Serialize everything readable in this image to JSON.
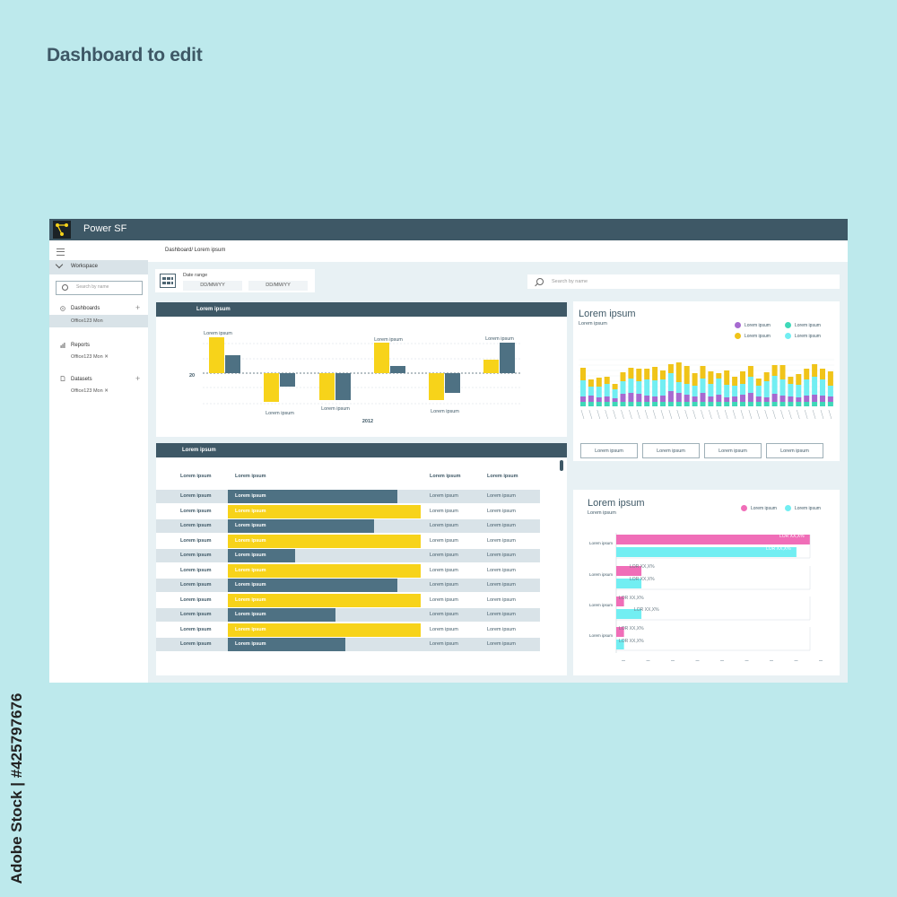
{
  "page": {
    "title": "Dashboard to edit",
    "watermark": "Adobe Stock | #425797676"
  },
  "app": {
    "name": "Power SF"
  },
  "sidebar": {
    "workspace": "Workspace",
    "search_placeholder": "Search by name",
    "sections": [
      {
        "label": "Dashboards",
        "item": "Office123 Mon",
        "icon": "dashboard-icon"
      },
      {
        "label": "Reports",
        "item": "Office123 Mon ✕",
        "icon": "report-icon"
      },
      {
        "label": "Datasets",
        "item": "Office123 Mon ✕",
        "icon": "dataset-icon"
      }
    ]
  },
  "breadcrumb": "Dashboard/ Lorem ipsum",
  "date_range": {
    "label": "Date range",
    "from": "DD/MM/YY",
    "to": "DD/MM/YY"
  },
  "search": {
    "placeholder": "Search by name"
  },
  "bar_panel": {
    "header": "Lorem ipsum",
    "axis_value": "20",
    "xlabel": "2012",
    "bar_label": "Lorem ipsum"
  },
  "table_panel": {
    "header": "Lorem ipsum",
    "columns": [
      "Lorem ipsum",
      "Lorem ipsum",
      "Lorem ipsum",
      "Lorem ipsum"
    ],
    "rows": [
      {
        "c1": "Lorem ipsum",
        "bar": "Lorem ipsum",
        "c3": "Lorem ipsum",
        "c4": "Lorem ipsum",
        "pct": 0.88,
        "color": "#4e7183"
      },
      {
        "c1": "Lorem ipsum",
        "bar": "Lorem ipsum",
        "c3": "Lorem ipsum",
        "c4": "Lorem ipsum",
        "pct": 1.0,
        "color": "#f7d31a"
      },
      {
        "c1": "Lorem ipsum",
        "bar": "Lorem ipsum",
        "c3": "Lorem ipsum",
        "c4": "Lorem ipsum",
        "pct": 0.76,
        "color": "#4e7183"
      },
      {
        "c1": "Lorem ipsum",
        "bar": "Lorem ipsum",
        "c3": "Lorem ipsum",
        "c4": "Lorem ipsum",
        "pct": 1.0,
        "color": "#f7d31a"
      },
      {
        "c1": "Lorem ipsum",
        "bar": "Lorem ipsum",
        "c3": "Lorem ipsum",
        "c4": "Lorem ipsum",
        "pct": 0.35,
        "color": "#4e7183"
      },
      {
        "c1": "Lorem ipsum",
        "bar": "Lorem ipsum",
        "c3": "Lorem ipsum",
        "c4": "Lorem ipsum",
        "pct": 1.0,
        "color": "#f7d31a"
      },
      {
        "c1": "Lorem ipsum",
        "bar": "Lorem ipsum",
        "c3": "Lorem ipsum",
        "c4": "Lorem ipsum",
        "pct": 0.88,
        "color": "#4e7183"
      },
      {
        "c1": "Lorem ipsum",
        "bar": "Lorem ipsum",
        "c3": "Lorem ipsum",
        "c4": "Lorem ipsum",
        "pct": 1.0,
        "color": "#f7d31a"
      },
      {
        "c1": "Lorem ipsum",
        "bar": "Lorem ipsum",
        "c3": "Lorem ipsum",
        "c4": "Lorem ipsum",
        "pct": 0.56,
        "color": "#4e7183"
      },
      {
        "c1": "Lorem ipsum",
        "bar": "Lorem ipsum",
        "c3": "Lorem ipsum",
        "c4": "Lorem ipsum",
        "pct": 1.0,
        "color": "#f7d31a"
      },
      {
        "c1": "Lorem ipsum",
        "bar": "Lorem ipsum",
        "c3": "Lorem ipsum",
        "c4": "Lorem ipsum",
        "pct": 0.61,
        "color": "#4e7183"
      }
    ]
  },
  "stack_panel": {
    "title": "Lorem ipsum",
    "subtitle": "Lorem ipsum",
    "legend": [
      {
        "name": "Lorem ipsum",
        "color": "#a66ad0"
      },
      {
        "name": "Lorem ipsum",
        "color": "#3fd8b8"
      },
      {
        "name": "Lorem ipsum",
        "color": "#f0c419"
      },
      {
        "name": "Lorem ipsum",
        "color": "#72eef2"
      }
    ],
    "buttons": [
      "Lorem ipsum",
      "Lorem ipsum",
      "Lorem ipsum",
      "Lorem ipsum"
    ]
  },
  "hbar_panel": {
    "title": "Lorem ipsum",
    "subtitle": "Lorem ipsum",
    "legend": [
      {
        "name": "Lorem ipsum",
        "color": "#f06eb8"
      },
      {
        "name": "Lorem ipsum",
        "color": "#72eef2"
      }
    ],
    "category_label": "Lorem ipsum",
    "value_label": "LOR XX,X%"
  },
  "chart_data": [
    {
      "type": "bar",
      "baseline": 20,
      "xlabel": "2012",
      "colors": [
        "#f7d31a",
        "#4e7183"
      ],
      "groups": [
        {
          "a": 40,
          "b": 20
        },
        {
          "a": -32,
          "b": -15
        },
        {
          "a": -30,
          "b": -30
        },
        {
          "a": 34,
          "b": 8
        },
        {
          "a": -30,
          "b": -22
        },
        {
          "a": 15,
          "b": 34
        }
      ]
    },
    {
      "type": "bar",
      "stacked": true,
      "colors": [
        "#3fd8b8",
        "#a66ad0",
        "#72eef2",
        "#f0c419"
      ],
      "bars": [
        [
          5,
          6,
          18,
          14
        ],
        [
          5,
          7,
          10,
          8
        ],
        [
          5,
          5,
          12,
          10
        ],
        [
          5,
          6,
          14,
          8
        ],
        [
          5,
          4,
          10,
          6
        ],
        [
          5,
          9,
          14,
          10
        ],
        [
          5,
          10,
          16,
          12
        ],
        [
          5,
          9,
          14,
          14
        ],
        [
          5,
          7,
          18,
          12
        ],
        [
          5,
          6,
          18,
          15
        ],
        [
          5,
          7,
          18,
          10
        ],
        [
          5,
          12,
          20,
          10
        ],
        [
          5,
          10,
          12,
          22
        ],
        [
          5,
          8,
          12,
          20
        ],
        [
          5,
          6,
          12,
          14
        ],
        [
          5,
          10,
          16,
          14
        ],
        [
          5,
          6,
          14,
          14
        ],
        [
          5,
          8,
          18,
          6
        ],
        [
          5,
          5,
          14,
          16
        ],
        [
          5,
          6,
          12,
          10
        ],
        [
          5,
          8,
          12,
          14
        ],
        [
          5,
          10,
          18,
          12
        ],
        [
          5,
          6,
          12,
          8
        ],
        [
          5,
          5,
          18,
          10
        ],
        [
          5,
          9,
          20,
          12
        ],
        [
          5,
          7,
          18,
          16
        ],
        [
          5,
          6,
          14,
          8
        ],
        [
          5,
          5,
          14,
          12
        ],
        [
          5,
          7,
          18,
          12
        ],
        [
          5,
          8,
          20,
          14
        ],
        [
          5,
          7,
          18,
          12
        ],
        [
          5,
          6,
          12,
          16
        ]
      ]
    },
    {
      "type": "bar",
      "orientation": "horizontal",
      "series": [
        {
          "color": "#f06eb8",
          "values": [
            100,
            13,
            4,
            4
          ]
        },
        {
          "color": "#72eef2",
          "values": [
            93,
            13,
            13,
            4
          ]
        }
      ]
    }
  ]
}
